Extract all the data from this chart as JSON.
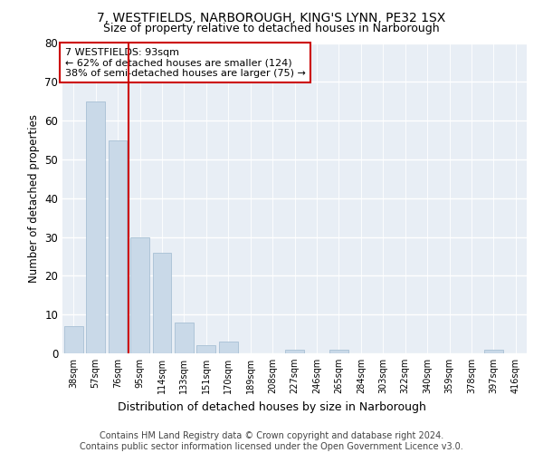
{
  "title1": "7, WESTFIELDS, NARBOROUGH, KING'S LYNN, PE32 1SX",
  "title2": "Size of property relative to detached houses in Narborough",
  "xlabel": "Distribution of detached houses by size in Narborough",
  "ylabel": "Number of detached properties",
  "categories": [
    "38sqm",
    "57sqm",
    "76sqm",
    "95sqm",
    "114sqm",
    "133sqm",
    "151sqm",
    "170sqm",
    "189sqm",
    "208sqm",
    "227sqm",
    "246sqm",
    "265sqm",
    "284sqm",
    "303sqm",
    "322sqm",
    "340sqm",
    "359sqm",
    "378sqm",
    "397sqm",
    "416sqm"
  ],
  "values": [
    7,
    65,
    55,
    30,
    26,
    8,
    2,
    3,
    0,
    0,
    1,
    0,
    1,
    0,
    0,
    0,
    0,
    0,
    0,
    1,
    0
  ],
  "bar_color": "#c9d9e8",
  "bar_edgecolor": "#a8c0d4",
  "vline_x": 2.5,
  "vline_color": "#cc0000",
  "annotation_text": "7 WESTFIELDS: 93sqm\n← 62% of detached houses are smaller (124)\n38% of semi-detached houses are larger (75) →",
  "annotation_box_edgecolor": "#cc0000",
  "ylim": [
    0,
    80
  ],
  "yticks": [
    0,
    10,
    20,
    30,
    40,
    50,
    60,
    70,
    80
  ],
  "footer": "Contains HM Land Registry data © Crown copyright and database right 2024.\nContains public sector information licensed under the Open Government Licence v3.0.",
  "plot_bg_color": "#e8eef5",
  "title1_fontsize": 10,
  "title2_fontsize": 9,
  "xlabel_fontsize": 9,
  "ylabel_fontsize": 8.5,
  "footer_fontsize": 7,
  "annotation_fontsize": 8
}
